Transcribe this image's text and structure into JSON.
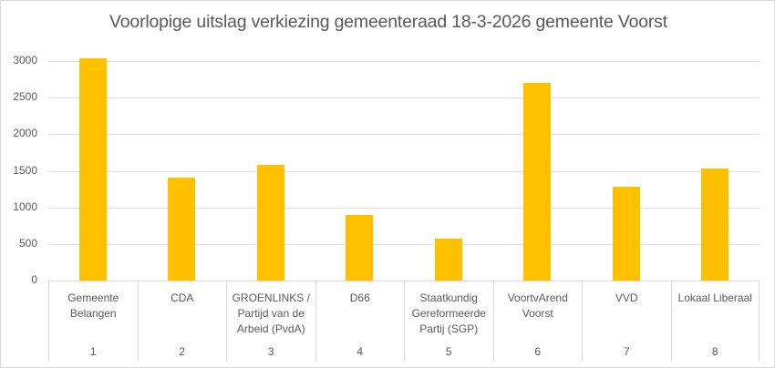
{
  "chart_data": {
    "type": "bar",
    "title": "Voorlopige uitslag verkiezing gemeenteraad 18-3-2026 gemeente Voorst",
    "xlabel": "",
    "ylabel": "",
    "ylim": [
      0,
      3000
    ],
    "yticks": [
      0,
      500,
      1000,
      1500,
      2000,
      2500,
      3000
    ],
    "grid": true,
    "legend": null,
    "bar_color": "#FFC000",
    "categories": [
      {
        "number": "1",
        "label": "Gemeente\nBelangen"
      },
      {
        "number": "2",
        "label": "CDA"
      },
      {
        "number": "3",
        "label": "GROENLINKS /\nPartijd van de\nArbeid (PvdA)"
      },
      {
        "number": "4",
        "label": "D66"
      },
      {
        "number": "5",
        "label": "Staatkundig\nGereformeerde\nPartij (SGP)"
      },
      {
        "number": "6",
        "label": "VoortvArend\nVoorst"
      },
      {
        "number": "7",
        "label": "VVD"
      },
      {
        "number": "8",
        "label": "Lokaal Liberaal"
      }
    ],
    "values": [
      3040,
      1410,
      1580,
      895,
      575,
      2705,
      1285,
      1535
    ]
  }
}
